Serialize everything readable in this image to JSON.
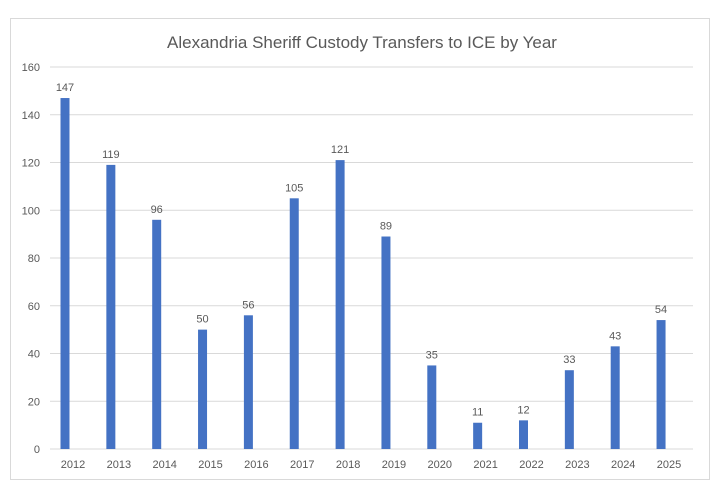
{
  "chart_data": {
    "type": "bar",
    "title": "Alexandria Sheriff Custody Transfers to ICE by Year",
    "xlabel": "",
    "ylabel": "",
    "categories": [
      "2012",
      "2013",
      "2014",
      "2015",
      "2016",
      "2017",
      "2018",
      "2019",
      "2020",
      "2021",
      "2022",
      "2023",
      "2024",
      "2025"
    ],
    "values": [
      147,
      119,
      96,
      50,
      56,
      105,
      121,
      89,
      35,
      11,
      12,
      33,
      43,
      54
    ],
    "ylim": [
      0,
      160
    ],
    "yticks": [
      0,
      20,
      40,
      60,
      80,
      100,
      120,
      140,
      160
    ],
    "grid": true,
    "data_labels": true,
    "bar_color": "#4472C4",
    "grid_color": "#d9d9d9"
  }
}
